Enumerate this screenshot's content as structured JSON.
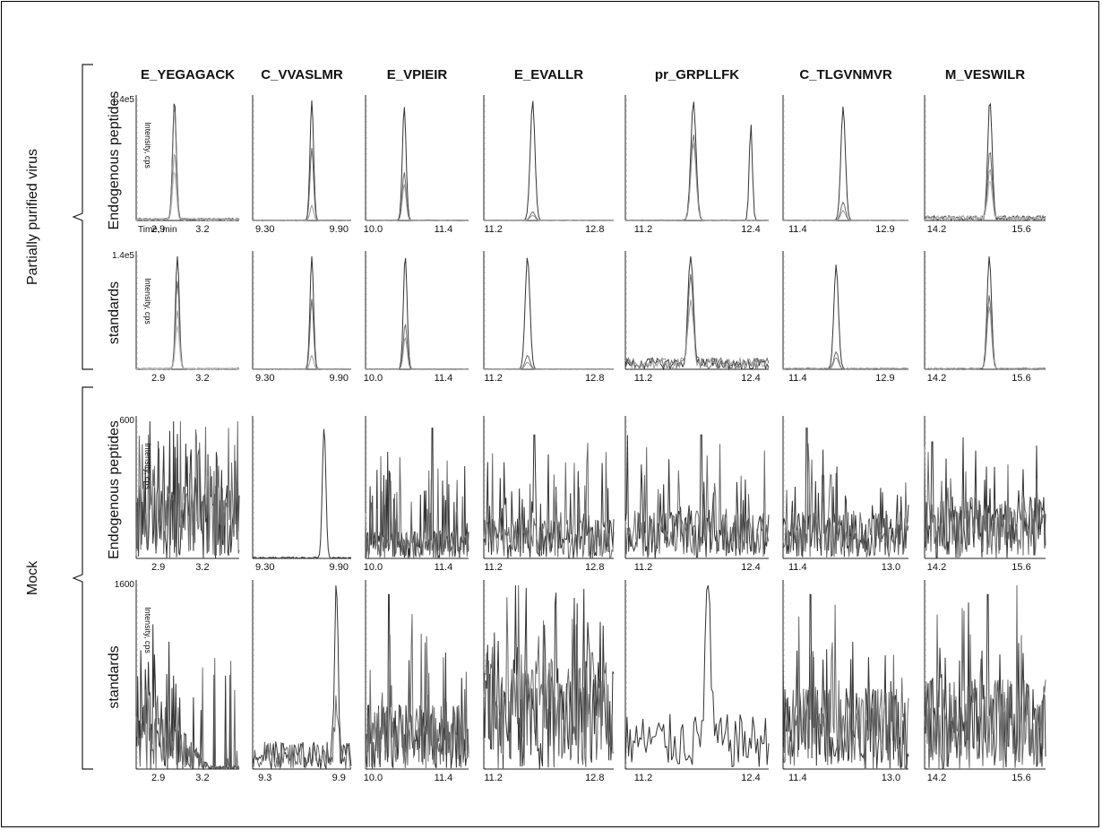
{
  "figure": {
    "group_labels": [
      "Partially purified virus",
      "Mock"
    ],
    "row_labels": [
      "Endogenous peptides",
      "standards",
      "Endogenous peptides",
      "standards"
    ],
    "column_titles": [
      "E_YEGAGACK",
      "C_VVASLMR",
      "E_VPIEIR",
      "E_EVALLR",
      "pr_GRPLLFK",
      "C_TLGVNMVR",
      "M_VESWILR"
    ],
    "annotations": {
      "time_label": "Time, min",
      "intensity_label": "Intensity, cps",
      "max_labels": [
        "1.4e5",
        "1.4e5",
        "600",
        "1600"
      ]
    }
  },
  "chart_data": {
    "type": "line",
    "grid": false,
    "trace_colors": [
      "#333333",
      "#6a6a6a",
      "#9a9a9a",
      "#bcbcbc"
    ],
    "rows": [
      {
        "group": "Partially purified virus",
        "row_label": "Endogenous peptides",
        "ymax_label": "1.4e5",
        "panels": [
          {
            "title": "E_YEGAGACK",
            "x_ticks": [
              "2.9",
              "3.2"
            ],
            "xlim": [
              2.75,
              3.45
            ],
            "peak_x": 3.01,
            "peak_heights": [
              1.0,
              0.95,
              0.55,
              0.4
            ],
            "mode": "peak",
            "noise": 0.02
          },
          {
            "title": "C_VVASLMR",
            "x_ticks": [
              "9.30",
              "9.90"
            ],
            "xlim": [
              9.2,
              10.0
            ],
            "peak_x": 9.68,
            "peak_heights": [
              1.0,
              0.6,
              0.12
            ],
            "mode": "peak",
            "noise": 0.005
          },
          {
            "title": "E_VPIEIR",
            "x_ticks": [
              "10.0",
              "11.4"
            ],
            "xlim": [
              9.85,
              11.9
            ],
            "peak_x": 10.62,
            "peak_heights": [
              0.95,
              0.4,
              0.3
            ],
            "mode": "peak",
            "noise": 0.005
          },
          {
            "title": "E_EVALLR",
            "x_ticks": [
              "11.2",
              "12.8"
            ],
            "xlim": [
              11.05,
              13.1
            ],
            "peak_x": 11.82,
            "peak_heights": [
              1.0,
              0.07,
              0.04
            ],
            "mode": "peak",
            "noise": 0.004
          },
          {
            "title": "pr_GRPLLFK",
            "x_ticks": [
              "11.2",
              "12.4"
            ],
            "xlim": [
              11.0,
              12.6
            ],
            "peak_x": 11.76,
            "peak_heights": [
              1.0,
              0.72,
              0.65
            ],
            "mode": "peak",
            "noise": 0.005
          },
          {
            "title": "C_TLGVNMVR",
            "x_ticks": [
              "11.4",
              "12.9"
            ],
            "xlim": [
              11.15,
              13.3
            ],
            "peak_x": 12.18,
            "peak_heights": [
              0.95,
              0.15,
              0.08
            ],
            "mode": "peak",
            "noise": 0.004
          },
          {
            "title": "M_VESWILR",
            "x_ticks": [
              "14.2",
              "15.6"
            ],
            "xlim": [
              14.0,
              16.0
            ],
            "peak_x": 15.08,
            "peak_heights": [
              1.0,
              0.55,
              0.4,
              0.3
            ],
            "mode": "peak",
            "noise": 0.04
          }
        ]
      },
      {
        "group": "Partially purified virus",
        "row_label": "standards",
        "ymax_label": "1.4e5",
        "panels": [
          {
            "title": "E_YEGAGACK",
            "x_ticks": [
              "2.9",
              "3.2"
            ],
            "xlim": [
              2.75,
              3.45
            ],
            "peak_x": 3.03,
            "peak_heights": [
              1.0,
              0.78,
              0.52,
              0.38
            ],
            "mode": "peak",
            "noise": 0.01
          },
          {
            "title": "C_VVASLMR",
            "x_ticks": [
              "9.30",
              "9.90"
            ],
            "xlim": [
              9.2,
              10.0
            ],
            "peak_x": 9.68,
            "peak_heights": [
              1.0,
              0.62,
              0.12
            ],
            "mode": "peak",
            "noise": 0.005
          },
          {
            "title": "E_VPIEIR",
            "x_ticks": [
              "10.0",
              "11.4"
            ],
            "xlim": [
              9.85,
              11.9
            ],
            "peak_x": 10.64,
            "peak_heights": [
              1.0,
              0.4,
              0.28
            ],
            "mode": "peak",
            "noise": 0.005
          },
          {
            "title": "E_EVALLR",
            "x_ticks": [
              "11.2",
              "12.8"
            ],
            "xlim": [
              11.05,
              13.1
            ],
            "peak_x": 11.74,
            "peak_heights": [
              1.0,
              0.12,
              0.06
            ],
            "mode": "peak",
            "noise": 0.004
          },
          {
            "title": "pr_GRPLLFK",
            "x_ticks": [
              "11.2",
              "12.4"
            ],
            "xlim": [
              11.0,
              12.6
            ],
            "peak_x": 11.73,
            "peak_heights": [
              1.0,
              0.75,
              0.6
            ],
            "mode": "peak",
            "noise": 0.1
          },
          {
            "title": "C_TLGVNMVR",
            "x_ticks": [
              "11.4",
              "12.9"
            ],
            "xlim": [
              11.15,
              13.3
            ],
            "peak_x": 12.06,
            "peak_heights": [
              0.92,
              0.15,
              0.1
            ],
            "mode": "peak",
            "noise": 0.01
          },
          {
            "title": "M_VESWILR",
            "x_ticks": [
              "14.2",
              "15.6"
            ],
            "xlim": [
              14.0,
              16.0
            ],
            "peak_x": 15.07,
            "peak_heights": [
              1.0,
              0.65,
              0.55
            ],
            "mode": "peak",
            "noise": 0.01
          }
        ]
      },
      {
        "group": "Mock",
        "row_label": "Endogenous peptides",
        "ymax_label": "600",
        "panels": [
          {
            "title": "E_YEGAGACK",
            "x_ticks": [
              "2.9",
              "3.2"
            ],
            "xlim": [
              2.75,
              3.45
            ],
            "mode": "noise",
            "level": 0.55,
            "spike_prob": 0.35
          },
          {
            "title": "C_VVASLMR",
            "x_ticks": [
              "9.30",
              "9.90"
            ],
            "xlim": [
              9.2,
              10.0
            ],
            "peak_x": 9.78,
            "peak_heights": [
              0.95
            ],
            "mode": "peak",
            "noise": 0.01
          },
          {
            "title": "E_VPIEIR",
            "x_ticks": [
              "10.0",
              "11.4"
            ],
            "xlim": [
              9.85,
              11.9
            ],
            "mode": "noise",
            "level": 0.2,
            "spike_prob": 0.2,
            "spike_x": 11.18,
            "spike_h": 0.95
          },
          {
            "title": "E_EVALLR",
            "x_ticks": [
              "11.2",
              "12.8"
            ],
            "xlim": [
              11.05,
              13.1
            ],
            "mode": "noise",
            "level": 0.3,
            "spike_prob": 0.15,
            "spike_x": 11.85,
            "spike_h": 0.9
          },
          {
            "title": "pr_GRPLLFK",
            "x_ticks": [
              "11.2",
              "12.4"
            ],
            "xlim": [
              11.0,
              12.6
            ],
            "mode": "noise",
            "level": 0.35,
            "spike_prob": 0.15,
            "spike_x": 11.85,
            "spike_h": 0.9
          },
          {
            "title": "C_TLGVNMVR",
            "x_ticks": [
              "11.4",
              "13.0"
            ],
            "xlim": [
              11.15,
              13.3
            ],
            "mode": "noise",
            "level": 0.35,
            "spike_prob": 0.15,
            "spike_x": 11.55,
            "spike_h": 0.95
          },
          {
            "title": "M_VESWILR",
            "x_ticks": [
              "14.2",
              "15.6"
            ],
            "xlim": [
              14.0,
              16.0
            ],
            "mode": "noise",
            "level": 0.45,
            "spike_prob": 0.15,
            "spike_x": 14.12,
            "spike_h": 0.85
          }
        ]
      },
      {
        "group": "Mock",
        "row_label": "standards",
        "ymax_label": "1600",
        "panels": [
          {
            "title": "E_YEGAGACK",
            "x_ticks": [
              "2.9",
              "3.2"
            ],
            "xlim": [
              2.75,
              3.45
            ],
            "mode": "noise",
            "level": 0.35,
            "spike_prob": 0.1,
            "decay": true
          },
          {
            "title": "C_VVASLMR",
            "x_ticks": [
              "9.3",
              "9.9"
            ],
            "xlim": [
              9.2,
              10.0
            ],
            "peak_x": 9.88,
            "peak_heights": [
              0.95,
              0.3
            ],
            "mode": "peak",
            "noise": 0.15
          },
          {
            "title": "E_VPIEIR",
            "x_ticks": [
              "10.0",
              "11.4"
            ],
            "xlim": [
              9.85,
              11.9
            ],
            "mode": "noise",
            "level": 0.35,
            "spike_prob": 0.1,
            "spike_x": 10.32,
            "spike_h": 0.95
          },
          {
            "title": "E_EVALLR",
            "x_ticks": [
              "11.2",
              "12.8"
            ],
            "xlim": [
              11.05,
              13.1
            ],
            "mode": "noise",
            "level": 0.6,
            "spike_prob": 0.25
          },
          {
            "title": "pr_GRPLLFK",
            "x_ticks": [
              "11.2",
              "12.4"
            ],
            "xlim": [
              11.0,
              12.6
            ],
            "peak_x": 11.92,
            "peak_heights": [
              0.92
            ],
            "mode": "peak",
            "noise": 0.3
          },
          {
            "title": "C_TLGVNMVR",
            "x_ticks": [
              "11.4",
              "13.0"
            ],
            "xlim": [
              11.15,
              13.3
            ],
            "mode": "noise",
            "level": 0.45,
            "spike_prob": 0.15,
            "spike_x": 11.62,
            "spike_h": 0.95
          },
          {
            "title": "M_VESWILR",
            "x_ticks": [
              "14.2",
              "15.6"
            ],
            "xlim": [
              14.0,
              16.0
            ],
            "mode": "noise",
            "level": 0.5,
            "spike_prob": 0.1,
            "spike_x": 15.05,
            "spike_h": 0.95
          }
        ]
      }
    ]
  }
}
